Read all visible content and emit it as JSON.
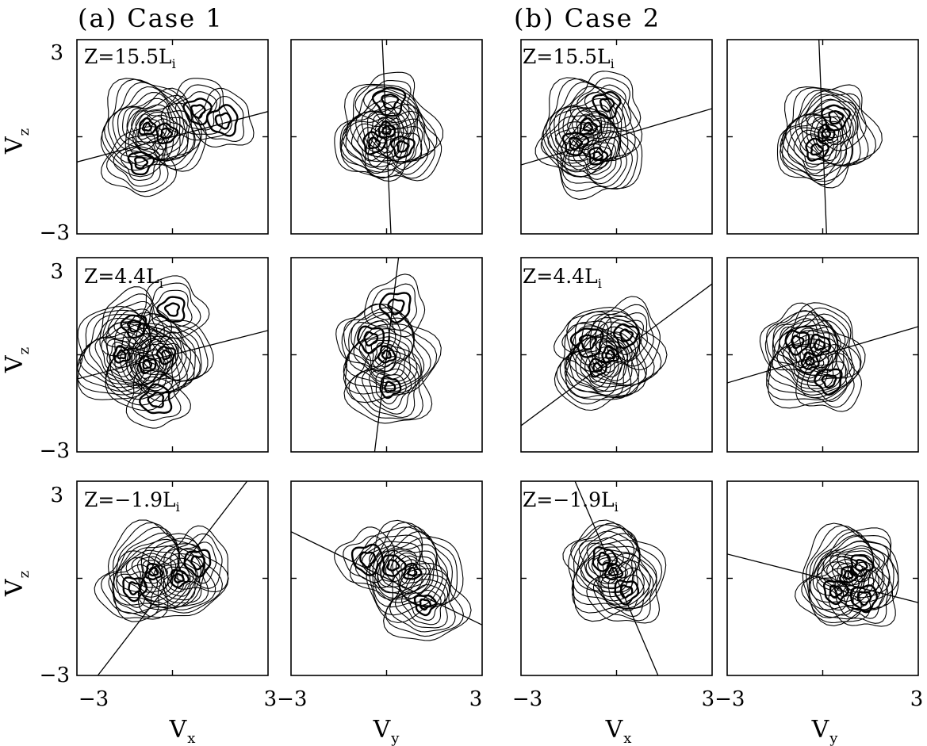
{
  "figure": {
    "case_titles": [
      "(a) Case 1",
      "(b) Case 2"
    ],
    "row_labels": [
      {
        "prefix": "Z=15.5L",
        "sub": "i"
      },
      {
        "prefix": "Z=4.4L",
        "sub": "i"
      },
      {
        "prefix": "Z=−1.9L",
        "sub": "i"
      }
    ],
    "ylabel": {
      "base": "V",
      "sub": "z"
    },
    "xlabels": [
      {
        "base": "V",
        "sub": "x"
      },
      {
        "base": "V",
        "sub": "y"
      },
      {
        "base": "V",
        "sub": "x"
      },
      {
        "base": "V",
        "sub": "y"
      }
    ],
    "y_tick_top": "3",
    "y_tick_bottom": "−3",
    "x_ticks": [
      "−3",
      "3−3",
      "3",
      "−3",
      "3−3",
      "3"
    ]
  },
  "chart_data": [
    {
      "type": "contour",
      "case": "Case 1",
      "row": "Z=15.5L_i",
      "xvar": "Vx",
      "yvar": "Vz",
      "xlim": [
        -3,
        3
      ],
      "ylim": [
        -3,
        3
      ],
      "line_slope": 0.26,
      "peaks": [
        {
          "x": -0.8,
          "y": 0.3,
          "w": 1.0
        },
        {
          "x": -0.2,
          "y": 0.1,
          "w": 0.7
        },
        {
          "x": -1.0,
          "y": -0.8,
          "w": 0.5
        },
        {
          "x": 0.8,
          "y": 0.8,
          "w": 0.4
        },
        {
          "x": 1.6,
          "y": 0.5,
          "w": 0.3
        }
      ]
    },
    {
      "type": "contour",
      "case": "Case 1",
      "row": "Z=15.5L_i",
      "xvar": "Vy",
      "yvar": "Vz",
      "xlim": [
        -3,
        3
      ],
      "ylim": [
        -3,
        3
      ],
      "line_slope": -22,
      "peaks": [
        {
          "x": 0.0,
          "y": 0.2,
          "w": 1.0
        },
        {
          "x": -0.4,
          "y": -0.2,
          "w": 0.6
        },
        {
          "x": 0.5,
          "y": -0.3,
          "w": 0.6
        },
        {
          "x": 0.1,
          "y": 1.1,
          "w": 0.3
        }
      ]
    },
    {
      "type": "contour",
      "case": "Case 1",
      "row": "Z=4.4L_i",
      "xvar": "Vx",
      "yvar": "Vz",
      "xlim": [
        -3,
        3
      ],
      "ylim": [
        -3,
        3
      ],
      "line_slope": 0.25,
      "peaks": [
        {
          "x": -1.6,
          "y": 0.0,
          "w": 1.0
        },
        {
          "x": -0.8,
          "y": -0.3,
          "w": 0.9
        },
        {
          "x": -0.2,
          "y": 0.0,
          "w": 0.8
        },
        {
          "x": -1.2,
          "y": 0.9,
          "w": 0.5
        },
        {
          "x": 0.0,
          "y": 1.4,
          "w": 0.4
        },
        {
          "x": -0.5,
          "y": -1.4,
          "w": 0.3
        }
      ]
    },
    {
      "type": "contour",
      "case": "Case 1",
      "row": "Z=4.4L_i",
      "xvar": "Vy",
      "yvar": "Vz",
      "xlim": [
        -3,
        3
      ],
      "ylim": [
        -3,
        3
      ],
      "line_slope": 8.0,
      "peaks": [
        {
          "x": 0.0,
          "y": 0.0,
          "w": 1.0
        },
        {
          "x": 0.1,
          "y": -1.0,
          "w": 0.7
        },
        {
          "x": -0.5,
          "y": 0.5,
          "w": 0.4
        },
        {
          "x": 0.3,
          "y": 1.5,
          "w": 0.3
        }
      ]
    },
    {
      "type": "contour",
      "case": "Case 1",
      "row": "Z=-1.9L_i",
      "xvar": "Vx",
      "yvar": "Vz",
      "xlim": [
        -3,
        3
      ],
      "ylim": [
        -3,
        3
      ],
      "line_slope": 1.28,
      "peaks": [
        {
          "x": -0.6,
          "y": 0.2,
          "w": 1.0
        },
        {
          "x": 0.2,
          "y": 0.0,
          "w": 0.8
        },
        {
          "x": -1.2,
          "y": -0.3,
          "w": 0.5
        },
        {
          "x": 0.8,
          "y": 0.5,
          "w": 0.4
        }
      ]
    },
    {
      "type": "contour",
      "case": "Case 1",
      "row": "Z=-1.9L_i",
      "xvar": "Vy",
      "yvar": "Vz",
      "xlim": [
        -3,
        3
      ],
      "ylim": [
        -3,
        3
      ],
      "line_slope": -0.48,
      "peaks": [
        {
          "x": 0.8,
          "y": 0.2,
          "w": 1.0
        },
        {
          "x": 0.2,
          "y": 0.4,
          "w": 0.6
        },
        {
          "x": 1.2,
          "y": -0.8,
          "w": 0.7
        },
        {
          "x": -0.6,
          "y": 0.6,
          "w": 0.3
        }
      ]
    },
    {
      "type": "contour",
      "case": "Case 2",
      "row": "Z=15.5L_i",
      "xvar": "Vx",
      "yvar": "Vz",
      "xlim": [
        -3,
        3
      ],
      "ylim": [
        -3,
        3
      ],
      "line_slope": 0.29,
      "peaks": [
        {
          "x": -0.9,
          "y": 0.3,
          "w": 1.0
        },
        {
          "x": -0.6,
          "y": -0.6,
          "w": 0.8
        },
        {
          "x": -1.3,
          "y": -0.2,
          "w": 0.5
        },
        {
          "x": -0.3,
          "y": 1.0,
          "w": 0.4
        }
      ]
    },
    {
      "type": "contour",
      "case": "Case 2",
      "row": "Z=15.5L_i",
      "xvar": "Vy",
      "yvar": "Vz",
      "xlim": [
        -3,
        3
      ],
      "ylim": [
        -3,
        3
      ],
      "line_slope": -25,
      "peaks": [
        {
          "x": 0.1,
          "y": 0.1,
          "w": 1.0
        },
        {
          "x": -0.2,
          "y": -0.4,
          "w": 0.6
        },
        {
          "x": 0.4,
          "y": 0.6,
          "w": 0.4
        }
      ]
    },
    {
      "type": "contour",
      "case": "Case 2",
      "row": "Z=4.4L_i",
      "xvar": "Vx",
      "yvar": "Vz",
      "xlim": [
        -3,
        3
      ],
      "ylim": [
        -3,
        3
      ],
      "line_slope": 0.73,
      "peaks": [
        {
          "x": -0.2,
          "y": 0.0,
          "w": 1.0
        },
        {
          "x": -0.6,
          "y": -0.4,
          "w": 0.8
        },
        {
          "x": 0.3,
          "y": 0.6,
          "w": 0.5
        },
        {
          "x": -0.9,
          "y": 0.4,
          "w": 0.3
        }
      ]
    },
    {
      "type": "contour",
      "case": "Case 2",
      "row": "Z=4.4L_i",
      "xvar": "Vy",
      "yvar": "Vz",
      "xlim": [
        -3,
        3
      ],
      "ylim": [
        -3,
        3
      ],
      "line_slope": 0.29,
      "peaks": [
        {
          "x": -0.4,
          "y": -0.2,
          "w": 1.0
        },
        {
          "x": -0.1,
          "y": 0.3,
          "w": 0.7
        },
        {
          "x": -0.8,
          "y": 0.4,
          "w": 0.5
        },
        {
          "x": 0.2,
          "y": -0.8,
          "w": 0.4
        }
      ]
    },
    {
      "type": "contour",
      "case": "Case 2",
      "row": "Z=-1.9L_i",
      "xvar": "Vx",
      "yvar": "Vz",
      "xlim": [
        -3,
        3
      ],
      "ylim": [
        -3,
        3
      ],
      "line_slope": -2.3,
      "peaks": [
        {
          "x": -0.1,
          "y": 0.2,
          "w": 1.0
        },
        {
          "x": -0.4,
          "y": 0.6,
          "w": 0.5
        },
        {
          "x": 0.3,
          "y": -0.4,
          "w": 0.5
        }
      ]
    },
    {
      "type": "contour",
      "case": "Case 2",
      "row": "Z=-1.9L_i",
      "xvar": "Vy",
      "yvar": "Vz",
      "xlim": [
        -3,
        3
      ],
      "ylim": [
        -3,
        3
      ],
      "line_slope": -0.25,
      "peaks": [
        {
          "x": 0.8,
          "y": 0.1,
          "w": 1.0
        },
        {
          "x": 1.2,
          "y": 0.4,
          "w": 0.6
        },
        {
          "x": 0.4,
          "y": -0.4,
          "w": 0.5
        },
        {
          "x": 1.3,
          "y": -0.6,
          "w": 0.4
        }
      ]
    }
  ]
}
